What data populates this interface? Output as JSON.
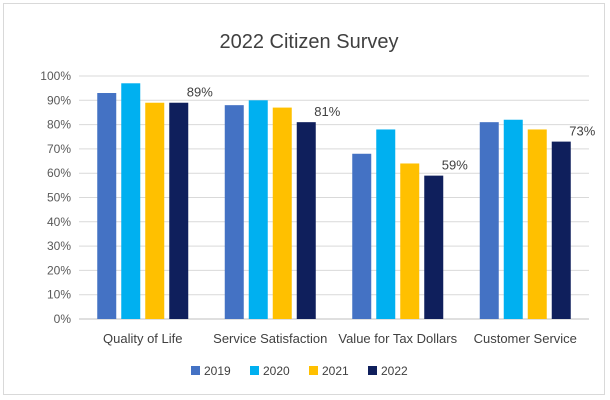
{
  "chart_data": {
    "type": "bar",
    "title": "2022 Citizen Survey",
    "categories": [
      "Quality of Life",
      "Service Satisfaction",
      "Value for Tax Dollars",
      "Customer Service"
    ],
    "series": [
      {
        "name": "2019",
        "color": "#4472c4",
        "values": [
          93,
          88,
          68,
          81
        ]
      },
      {
        "name": "2020",
        "color": "#00b0f0",
        "values": [
          97,
          90,
          78,
          82
        ]
      },
      {
        "name": "2021",
        "color": "#ffc000",
        "values": [
          89,
          87,
          64,
          78
        ]
      },
      {
        "name": "2022",
        "color": "#0f1f5c",
        "values": [
          89,
          81,
          59,
          73
        ]
      }
    ],
    "data_labels": [
      {
        "series": "2022",
        "category": "Quality of Life",
        "text": "89%"
      },
      {
        "series": "2022",
        "category": "Service Satisfaction",
        "text": "81%"
      },
      {
        "series": "2022",
        "category": "Value for Tax Dollars",
        "text": "59%"
      },
      {
        "series": "2022",
        "category": "Customer Service",
        "text": "73%"
      }
    ],
    "yticks": [
      "0%",
      "10%",
      "20%",
      "30%",
      "40%",
      "50%",
      "60%",
      "70%",
      "80%",
      "90%",
      "100%"
    ],
    "ylim": [
      0,
      100
    ],
    "grid": true,
    "legend_position": "bottom",
    "xlabel": "",
    "ylabel": ""
  }
}
